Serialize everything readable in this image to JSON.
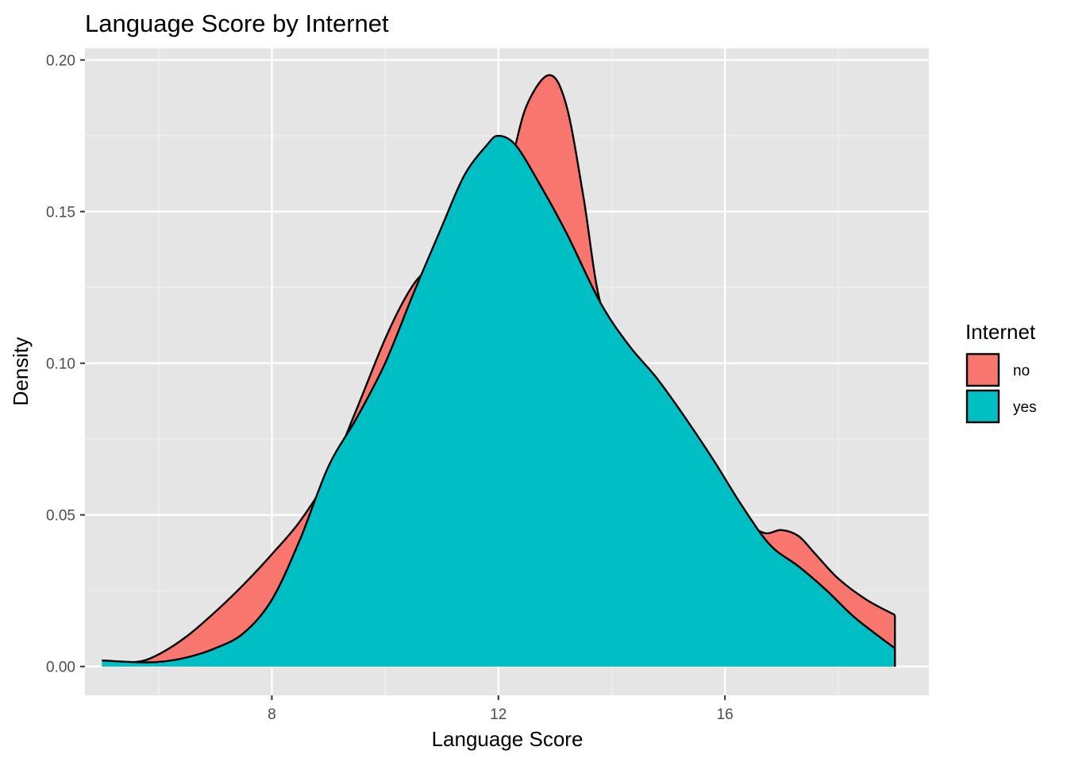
{
  "chart_data": {
    "type": "area",
    "title": "Language Score by Internet",
    "xlabel": "Language Score",
    "ylabel": "Density",
    "xlim": [
      4.7,
      19.6
    ],
    "ylim": [
      -0.0095,
      0.2038
    ],
    "x_ticks": [
      8,
      12,
      16
    ],
    "x_minor_ticks": [
      6,
      10,
      14,
      18
    ],
    "y_ticks": [
      0.0,
      0.05,
      0.1,
      0.15,
      0.2
    ],
    "y_tick_labels": [
      "0.00",
      "0.05",
      "0.10",
      "0.15",
      "0.20"
    ],
    "y_minor_ticks": [
      0.025,
      0.075,
      0.125,
      0.175
    ],
    "grid": true,
    "panel_background": "#e5e5e5",
    "legend": {
      "title": "Internet",
      "position": "right",
      "entries": [
        "no",
        "yes"
      ]
    },
    "series": [
      {
        "name": "no",
        "color": "#F8766D",
        "points": [
          [
            5.0,
            0.002
          ],
          [
            5.6,
            0.0015
          ],
          [
            6.0,
            0.004
          ],
          [
            6.5,
            0.01
          ],
          [
            7.0,
            0.018
          ],
          [
            7.5,
            0.027
          ],
          [
            8.0,
            0.037
          ],
          [
            8.5,
            0.048
          ],
          [
            9.0,
            0.063
          ],
          [
            9.5,
            0.085
          ],
          [
            10.0,
            0.108
          ],
          [
            10.4,
            0.123
          ],
          [
            10.7,
            0.13
          ],
          [
            11.0,
            0.131
          ],
          [
            11.4,
            0.134
          ],
          [
            11.8,
            0.145
          ],
          [
            12.2,
            0.165
          ],
          [
            12.5,
            0.185
          ],
          [
            12.9,
            0.195
          ],
          [
            13.2,
            0.185
          ],
          [
            13.5,
            0.155
          ],
          [
            13.8,
            0.12
          ],
          [
            14.2,
            0.108
          ],
          [
            14.6,
            0.098
          ],
          [
            15.0,
            0.088
          ],
          [
            15.5,
            0.074
          ],
          [
            16.0,
            0.06
          ],
          [
            16.4,
            0.048
          ],
          [
            16.7,
            0.044
          ],
          [
            17.0,
            0.045
          ],
          [
            17.3,
            0.043
          ],
          [
            17.6,
            0.037
          ],
          [
            18.0,
            0.029
          ],
          [
            18.5,
            0.022
          ],
          [
            19.0,
            0.017
          ]
        ]
      },
      {
        "name": "yes",
        "color": "#00BFC4",
        "points": [
          [
            5.0,
            0.002
          ],
          [
            5.5,
            0.0015
          ],
          [
            6.0,
            0.0015
          ],
          [
            6.5,
            0.003
          ],
          [
            7.0,
            0.006
          ],
          [
            7.5,
            0.011
          ],
          [
            8.0,
            0.022
          ],
          [
            8.5,
            0.042
          ],
          [
            9.0,
            0.066
          ],
          [
            9.5,
            0.082
          ],
          [
            10.0,
            0.1
          ],
          [
            10.5,
            0.123
          ],
          [
            11.0,
            0.145
          ],
          [
            11.4,
            0.162
          ],
          [
            11.8,
            0.172
          ],
          [
            12.0,
            0.175
          ],
          [
            12.3,
            0.172
          ],
          [
            12.7,
            0.16
          ],
          [
            13.2,
            0.143
          ],
          [
            13.8,
            0.12
          ],
          [
            14.3,
            0.106
          ],
          [
            14.8,
            0.095
          ],
          [
            15.3,
            0.082
          ],
          [
            15.8,
            0.068
          ],
          [
            16.3,
            0.053
          ],
          [
            16.8,
            0.04
          ],
          [
            17.3,
            0.033
          ],
          [
            17.8,
            0.025
          ],
          [
            18.3,
            0.016
          ],
          [
            19.0,
            0.006
          ]
        ]
      }
    ]
  }
}
